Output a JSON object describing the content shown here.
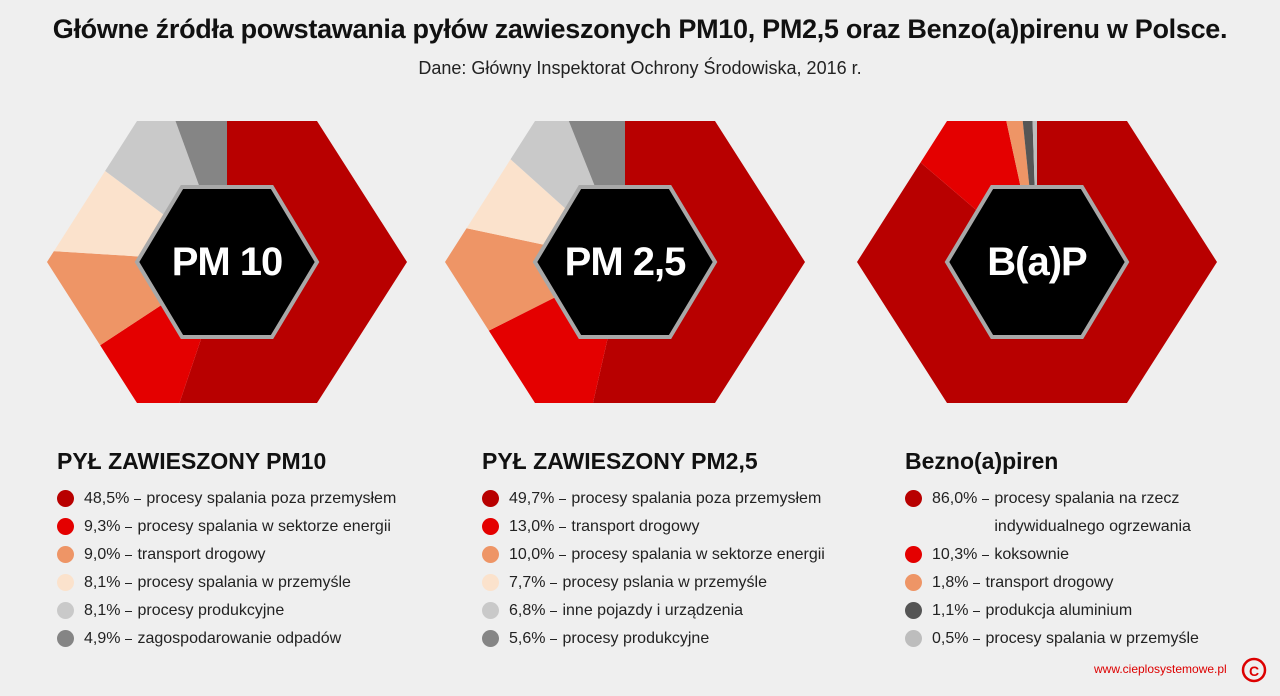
{
  "title": "Główne źródła powstawania pyłów zawieszonych PM10, PM2,5 oraz Benzo(a)pirenu w Polsce.",
  "subtitle": "Dane: Główny Inspektorat Ochrony Środowiska, 2016 r.",
  "footer": {
    "url": "www.cieplosystemowe.pl",
    "logo": "C"
  },
  "chart_data": [
    {
      "type": "pie",
      "label": "PM 10",
      "title": "PYŁ ZAWIESZONY PM10",
      "categories": [
        "procesy spalania poza przemysłem",
        "procesy spalania w sektorze energii",
        "transport drogowy",
        "procesy spalania w przemyśle",
        "procesy produkcyjne",
        "zagospodarowanie odpadów"
      ],
      "values": [
        48.5,
        9.3,
        9.0,
        8.1,
        8.1,
        4.9
      ],
      "value_labels": [
        "48,5%",
        "9,3%",
        "9,0%",
        "8,1%",
        "8,1%",
        "4,9%"
      ],
      "colors": [
        "#b80000",
        "#e40000",
        "#ee9566",
        "#fbe2cc",
        "#c9c9c9",
        "#858585"
      ]
    },
    {
      "type": "pie",
      "label": "PM 2,5",
      "title": "PYŁ ZAWIESZONY PM2,5",
      "categories": [
        "procesy spalania poza przemysłem",
        "transport drogowy",
        "procesy spalania w sektorze energii",
        "procesy pslania w przemyśle",
        "inne pojazdy i urządzenia",
        "procesy produkcyjne"
      ],
      "values": [
        49.7,
        13.0,
        10.0,
        7.7,
        6.8,
        5.6
      ],
      "value_labels": [
        "49,7%",
        "13,0%",
        "10,0%",
        "7,7%",
        "6,8%",
        "5,6%"
      ],
      "colors": [
        "#b80000",
        "#e40000",
        "#ee9566",
        "#fbe2cc",
        "#c9c9c9",
        "#858585"
      ]
    },
    {
      "type": "pie",
      "label": "B(a)P",
      "title": "Bezno(a)piren",
      "categories": [
        "procesy spalania na rzecz indywidualnego ogrzewania",
        "koksownie",
        "transport drogowy",
        "produkcja aluminium",
        "procesy spalania w przemyśle"
      ],
      "values": [
        86.0,
        10.3,
        1.8,
        1.1,
        0.5
      ],
      "value_labels": [
        "86,0%",
        "10,3%",
        "1,8%",
        "1,1%",
        "0,5%"
      ],
      "colors": [
        "#b80000",
        "#e40000",
        "#ee9566",
        "#555555",
        "#bdbdbd"
      ]
    }
  ]
}
